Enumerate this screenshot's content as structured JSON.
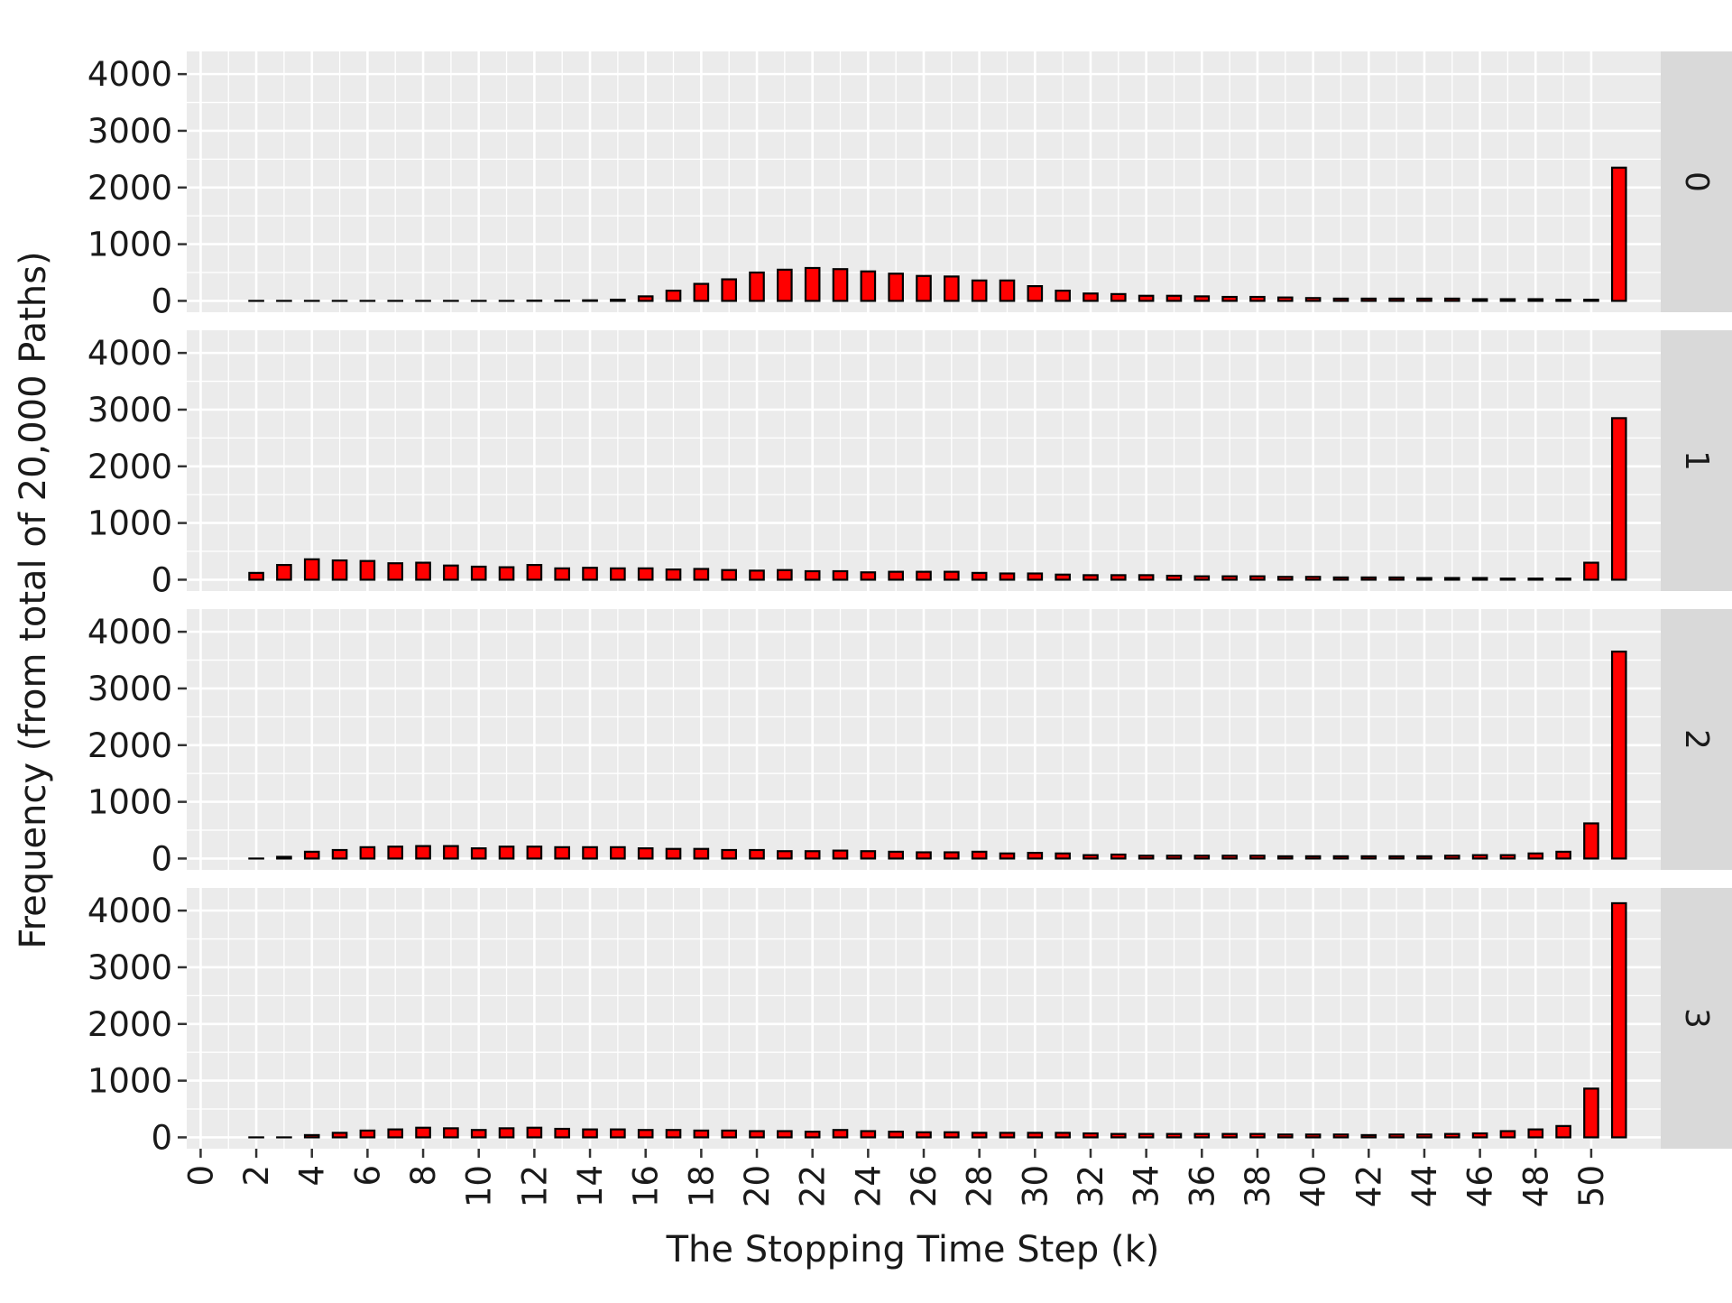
{
  "chart_data": {
    "type": "bar",
    "xlabel": "The Stopping Time Step (k)",
    "ylabel": "Frequency (from total of 20,000 Paths)",
    "x_ticks": [
      0,
      2,
      4,
      6,
      8,
      10,
      12,
      14,
      16,
      18,
      20,
      22,
      24,
      26,
      28,
      30,
      32,
      34,
      36,
      38,
      40,
      42,
      44,
      46,
      48,
      50
    ],
    "y_ticks": [
      0,
      1000,
      2000,
      3000,
      4000
    ],
    "xlim": [
      -0.5,
      52.5
    ],
    "ylim": [
      -200,
      4400
    ],
    "grid": true,
    "facet_by": "row",
    "colors": {
      "bar_fill": "#ff0000",
      "bar_edge": "#000000",
      "panel_bg": "#ebebeb",
      "strip_bg": "#d9d9d9",
      "grid": "#ffffff"
    },
    "x": [
      2,
      3,
      4,
      5,
      6,
      7,
      8,
      9,
      10,
      11,
      12,
      13,
      14,
      15,
      16,
      17,
      18,
      19,
      20,
      21,
      22,
      23,
      24,
      25,
      26,
      27,
      28,
      29,
      30,
      31,
      32,
      33,
      34,
      35,
      36,
      37,
      38,
      39,
      40,
      41,
      42,
      43,
      44,
      45,
      46,
      47,
      48,
      49,
      50,
      51
    ],
    "panels": [
      {
        "strip_label": "0",
        "values": [
          0,
          0,
          0,
          0,
          0,
          0,
          0,
          0,
          0,
          0,
          5,
          5,
          10,
          20,
          80,
          180,
          300,
          380,
          500,
          550,
          580,
          560,
          520,
          480,
          440,
          430,
          360,
          360,
          260,
          180,
          130,
          120,
          90,
          90,
          80,
          70,
          70,
          60,
          50,
          40,
          40,
          40,
          40,
          40,
          30,
          30,
          30,
          20,
          20,
          2350
        ]
      },
      {
        "strip_label": "1",
        "values": [
          120,
          260,
          360,
          340,
          330,
          290,
          300,
          250,
          230,
          220,
          260,
          200,
          210,
          200,
          200,
          180,
          190,
          170,
          160,
          170,
          150,
          150,
          130,
          140,
          140,
          140,
          120,
          110,
          110,
          90,
          80,
          80,
          80,
          70,
          60,
          60,
          60,
          50,
          50,
          40,
          40,
          40,
          30,
          30,
          30,
          20,
          20,
          20,
          300,
          2850
        ]
      },
      {
        "strip_label": "2",
        "values": [
          0,
          30,
          120,
          150,
          200,
          210,
          220,
          220,
          180,
          210,
          210,
          200,
          200,
          200,
          180,
          170,
          170,
          150,
          150,
          130,
          130,
          140,
          130,
          120,
          110,
          110,
          120,
          90,
          100,
          90,
          60,
          70,
          50,
          50,
          50,
          50,
          50,
          40,
          40,
          40,
          40,
          40,
          40,
          50,
          60,
          60,
          90,
          120,
          620,
          3650
        ]
      },
      {
        "strip_label": "3",
        "values": [
          0,
          0,
          40,
          80,
          120,
          140,
          170,
          160,
          130,
          160,
          170,
          150,
          140,
          140,
          130,
          130,
          120,
          120,
          110,
          110,
          100,
          130,
          110,
          100,
          90,
          90,
          80,
          80,
          80,
          80,
          70,
          60,
          60,
          60,
          60,
          60,
          60,
          50,
          50,
          50,
          40,
          50,
          50,
          60,
          70,
          110,
          140,
          200,
          860,
          4130
        ]
      }
    ]
  }
}
